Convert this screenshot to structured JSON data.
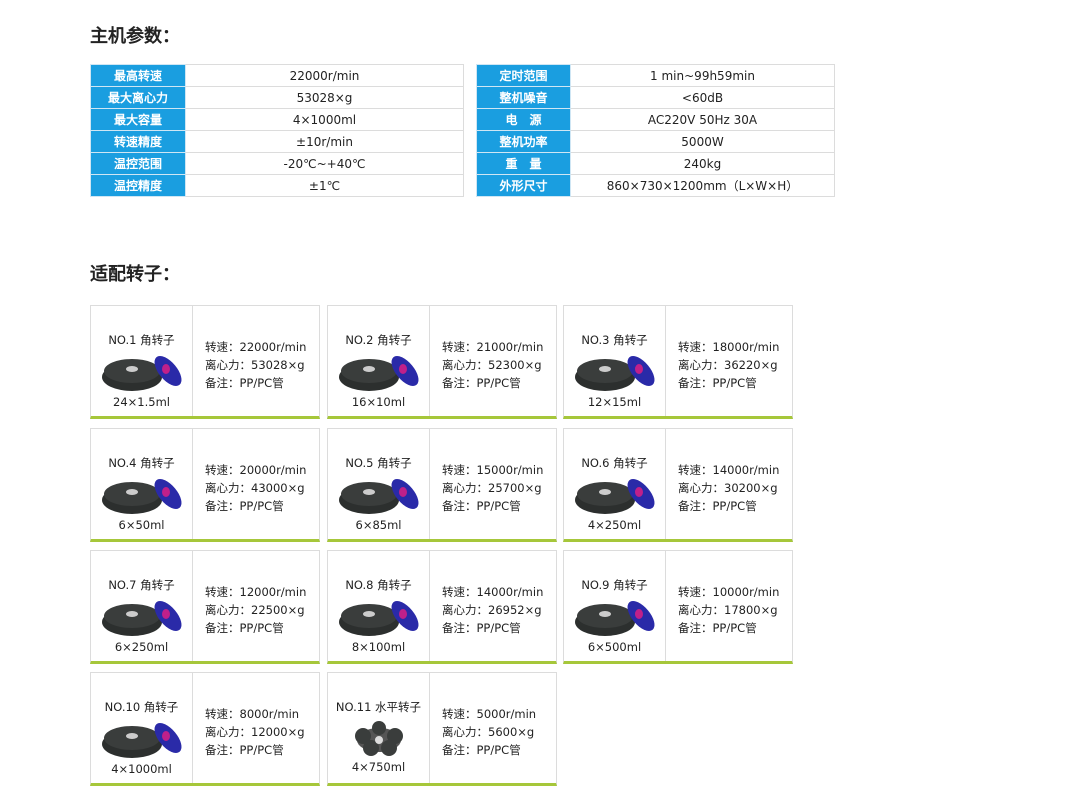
{
  "section1_title": "主机参数：",
  "section2_title": "适配转子：",
  "specs_left": [
    {
      "label": "最高转速",
      "value": "22000r/min"
    },
    {
      "label": "最大离心力",
      "value": "53028×g"
    },
    {
      "label": "最大容量",
      "value": "4×1000ml"
    },
    {
      "label": "转速精度",
      "value": "±10r/min"
    },
    {
      "label": "温控范围",
      "value": "-20℃~+40℃"
    },
    {
      "label": "温控精度",
      "value": "±1℃"
    }
  ],
  "specs_right": [
    {
      "label": "定时范围",
      "value": "1 min~99h59min"
    },
    {
      "label": "整机噪音",
      "value": "<60dB"
    },
    {
      "label": "电　源",
      "value": "AC220V 50Hz 30A"
    },
    {
      "label": "整机功率",
      "value": "5000W"
    },
    {
      "label": "重　量",
      "value": "240kg"
    },
    {
      "label": "外形尺寸",
      "value": "860×730×1200mm（L×W×H）"
    }
  ],
  "colors": {
    "label_bg": "#1a9ee0",
    "card_underline": "#a6c73a",
    "rotor_body": "#3a3d3c",
    "lid": "#2a2aa8",
    "lid_center": "#c0208a"
  },
  "rotors": [
    {
      "name": "NO.1 角转子",
      "capacity": "24×1.5ml",
      "speed": "转速：22000r/min",
      "rcf": "离心力：53028×g",
      "note": "备注：PP/PC管"
    },
    {
      "name": "NO.2 角转子",
      "capacity": "16×10ml",
      "speed": "转速：21000r/min",
      "rcf": "离心力：52300×g",
      "note": "备注：PP/PC管"
    },
    {
      "name": "NO.3 角转子",
      "capacity": "12×15ml",
      "speed": "转速：18000r/min",
      "rcf": "离心力：36220×g",
      "note": "备注：PP/PC管"
    },
    {
      "name": "NO.4 角转子",
      "capacity": "6×50ml",
      "speed": "转速：20000r/min",
      "rcf": "离心力：43000×g",
      "note": "备注：PP/PC管"
    },
    {
      "name": "NO.5 角转子",
      "capacity": "6×85ml",
      "speed": "转速：15000r/min",
      "rcf": "离心力：25700×g",
      "note": "备注：PP/PC管"
    },
    {
      "name": "NO.6 角转子",
      "capacity": "4×250ml",
      "speed": "转速：14000r/min",
      "rcf": "离心力：30200×g",
      "note": "备注：PP/PC管"
    },
    {
      "name": "NO.7 角转子",
      "capacity": "6×250ml",
      "speed": "转速：12000r/min",
      "rcf": "离心力：22500×g",
      "note": "备注：PP/PC管"
    },
    {
      "name": "NO.8 角转子",
      "capacity": "8×100ml",
      "speed": "转速：14000r/min",
      "rcf": "离心力：26952×g",
      "note": "备注：PP/PC管"
    },
    {
      "name": "NO.9 角转子",
      "capacity": "6×500ml",
      "speed": "转速：10000r/min",
      "rcf": "离心力：17800×g",
      "note": "备注：PP/PC管"
    },
    {
      "name": "NO.10 角转子",
      "capacity": "4×1000ml",
      "speed": "转速：8000r/min",
      "rcf": "离心力：12000×g",
      "note": "备注：PP/PC管"
    },
    {
      "name": "NO.11 水平转子",
      "capacity": "4×750ml",
      "speed": "转速：5000r/min",
      "rcf": "离心力：5600×g",
      "note": "备注：PP/PC管"
    }
  ]
}
